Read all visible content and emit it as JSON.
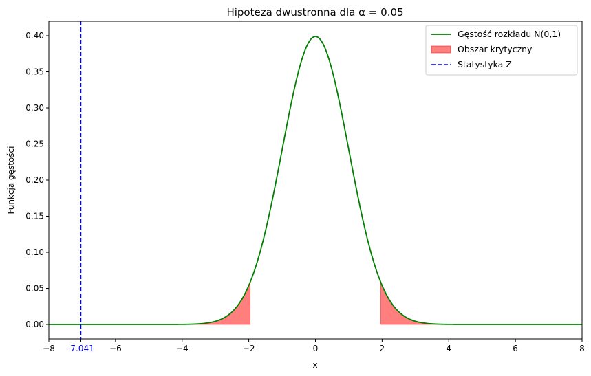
{
  "chart_data": {
    "type": "line",
    "title": "Hipoteza dwustronna dla α = 0.05",
    "xlabel": "x",
    "ylabel": "Funkcja gęstości",
    "xlim": [
      -8,
      8
    ],
    "ylim": [
      -0.02,
      0.42
    ],
    "x_ticks": [
      -8,
      -6,
      -4,
      -2,
      0,
      2,
      4,
      6,
      8
    ],
    "x_tick_labels": [
      "−8",
      "−6",
      "−4",
      "−2",
      "0",
      "2",
      "4",
      "6",
      "8"
    ],
    "y_ticks": [
      0.0,
      0.05,
      0.1,
      0.15,
      0.2,
      0.25,
      0.3,
      0.35,
      0.4
    ],
    "y_tick_labels": [
      "0.00",
      "0.05",
      "0.10",
      "0.15",
      "0.20",
      "0.25",
      "0.30",
      "0.35",
      "0.40"
    ],
    "grid": false,
    "legend_position": "top-right",
    "series": [
      {
        "name": "Gęstość rozkładu N(0,1)",
        "kind": "line",
        "color": "#008000",
        "x_range": [
          -8,
          8
        ],
        "points": [
          [
            -8,
            0.0
          ],
          [
            -4,
            0.0001
          ],
          [
            -3.5,
            0.0009
          ],
          [
            -3,
            0.0044
          ],
          [
            -2.5,
            0.0175
          ],
          [
            -2,
            0.054
          ],
          [
            -1.5,
            0.1295
          ],
          [
            -1,
            0.242
          ],
          [
            -0.5,
            0.3521
          ],
          [
            0,
            0.3989
          ],
          [
            0.5,
            0.3521
          ],
          [
            1,
            0.242
          ],
          [
            1.5,
            0.1295
          ],
          [
            2,
            0.054
          ],
          [
            2.5,
            0.0175
          ],
          [
            3,
            0.0044
          ],
          [
            3.5,
            0.0009
          ],
          [
            4,
            0.0001
          ],
          [
            8,
            0.0
          ]
        ]
      },
      {
        "name": "Obszar krytyczny",
        "kind": "area",
        "color": "#ff0000",
        "alpha": 0.5,
        "regions": [
          [
            -8,
            -1.96
          ],
          [
            1.96,
            8
          ]
        ]
      },
      {
        "name": "Statystyka Z",
        "kind": "vline",
        "color": "#0000ff",
        "x": -7.041,
        "label": "-7.041"
      }
    ]
  }
}
